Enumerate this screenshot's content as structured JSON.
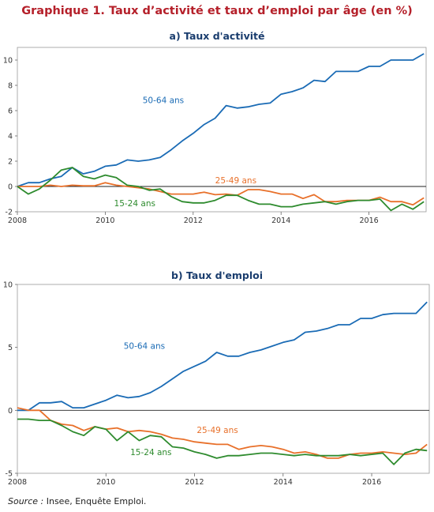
{
  "title": "Graphique 1. Taux d’activité et taux d’emploi par âge (en %)",
  "source": {
    "label": "Source :",
    "text": "Insee, Enquête Emploi."
  },
  "colors": {
    "c5064": "#1a6bb5",
    "c2549": "#e8702a",
    "c1524": "#2e8b2e",
    "title": "#b5202a",
    "panel_title": "#1a3d6e"
  },
  "chart_data": [
    {
      "type": "line",
      "title": "a) Taux d'activité",
      "xlim": [
        2008,
        2017.3
      ],
      "ylim": [
        -2,
        11
      ],
      "xticks": [
        2008,
        2010,
        2012,
        2014,
        2016
      ],
      "yticks": [
        -2,
        0,
        2,
        4,
        6,
        8,
        10
      ],
      "x": [
        2008.0,
        2008.25,
        2008.5,
        2008.75,
        2009.0,
        2009.25,
        2009.5,
        2009.75,
        2010.0,
        2010.25,
        2010.5,
        2010.75,
        2011.0,
        2011.25,
        2011.5,
        2011.75,
        2012.0,
        2012.25,
        2012.5,
        2012.75,
        2013.0,
        2013.25,
        2013.5,
        2013.75,
        2014.0,
        2014.25,
        2014.5,
        2014.75,
        2015.0,
        2015.25,
        2015.5,
        2015.75,
        2016.0,
        2016.25,
        2016.5,
        2016.75,
        2017.0,
        2017.25
      ],
      "series": [
        {
          "name": "50-64 ans",
          "color": "#1a6bb5",
          "values": [
            0.0,
            0.3,
            0.3,
            0.6,
            0.8,
            1.5,
            1.0,
            1.2,
            1.6,
            1.7,
            2.1,
            2.0,
            2.1,
            2.3,
            2.9,
            3.6,
            4.2,
            4.9,
            5.4,
            6.4,
            6.2,
            6.3,
            6.5,
            6.6,
            7.3,
            7.5,
            7.8,
            8.4,
            8.3,
            9.1,
            9.1,
            9.1,
            9.5,
            9.5,
            10.0,
            10.0,
            10.0,
            10.5
          ]
        },
        {
          "name": "25-49 ans",
          "color": "#e8702a",
          "values": [
            0.0,
            0.0,
            0.0,
            0.1,
            0.0,
            0.1,
            0.05,
            0.05,
            0.3,
            0.1,
            0.0,
            -0.1,
            -0.2,
            -0.4,
            -0.6,
            -0.6,
            -0.6,
            -0.45,
            -0.65,
            -0.6,
            -0.7,
            -0.25,
            -0.25,
            -0.4,
            -0.6,
            -0.6,
            -0.95,
            -0.65,
            -1.2,
            -1.2,
            -1.1,
            -1.1,
            -1.1,
            -0.85,
            -1.2,
            -1.2,
            -1.45,
            -0.9
          ]
        },
        {
          "name": "15-24 ans",
          "color": "#2e8b2e",
          "values": [
            0.0,
            -0.6,
            -0.2,
            0.5,
            1.3,
            1.5,
            0.8,
            0.6,
            0.9,
            0.7,
            0.1,
            0.0,
            -0.3,
            -0.2,
            -0.8,
            -1.2,
            -1.3,
            -1.3,
            -1.1,
            -0.7,
            -0.7,
            -1.1,
            -1.4,
            -1.4,
            -1.6,
            -1.6,
            -1.4,
            -1.3,
            -1.2,
            -1.4,
            -1.2,
            -1.1,
            -1.1,
            -1.0,
            -1.9,
            -1.4,
            -1.8,
            -1.2
          ]
        }
      ],
      "annotations": [
        {
          "text": "50-64 ans",
          "color": "#1a6bb5",
          "x": 2010.85,
          "y": 6.6
        },
        {
          "text": "25-49 ans",
          "color": "#e8702a",
          "x": 2012.5,
          "y": 0.25
        },
        {
          "text": "15-24 ans",
          "color": "#2e8b2e",
          "x": 2010.2,
          "y": -1.55
        }
      ]
    },
    {
      "type": "line",
      "title": "b) Taux d'emploi",
      "xlim": [
        2008,
        2017.3
      ],
      "ylim": [
        -5,
        10
      ],
      "xticks": [
        2008,
        2010,
        2012,
        2014,
        2016
      ],
      "yticks": [
        -5,
        0,
        5,
        10
      ],
      "x": [
        2008.0,
        2008.25,
        2008.5,
        2008.75,
        2009.0,
        2009.25,
        2009.5,
        2009.75,
        2010.0,
        2010.25,
        2010.5,
        2010.75,
        2011.0,
        2011.25,
        2011.5,
        2011.75,
        2012.0,
        2012.25,
        2012.5,
        2012.75,
        2013.0,
        2013.25,
        2013.5,
        2013.75,
        2014.0,
        2014.25,
        2014.5,
        2014.75,
        2015.0,
        2015.25,
        2015.5,
        2015.75,
        2016.0,
        2016.25,
        2016.5,
        2016.75,
        2017.0,
        2017.25
      ],
      "series": [
        {
          "name": "50-64 ans",
          "color": "#1a6bb5",
          "values": [
            0.0,
            0.0,
            0.6,
            0.6,
            0.7,
            0.2,
            0.2,
            0.5,
            0.8,
            1.2,
            1.0,
            1.1,
            1.4,
            1.9,
            2.5,
            3.1,
            3.5,
            3.9,
            4.6,
            4.3,
            4.3,
            4.6,
            4.8,
            5.1,
            5.4,
            5.6,
            6.2,
            6.3,
            6.5,
            6.8,
            6.8,
            7.3,
            7.3,
            7.6,
            7.7,
            7.7,
            7.7,
            8.6
          ]
        },
        {
          "name": "25-49 ans",
          "color": "#e8702a",
          "values": [
            0.2,
            0.0,
            0.0,
            -0.8,
            -1.1,
            -1.2,
            -1.6,
            -1.3,
            -1.5,
            -1.4,
            -1.7,
            -1.6,
            -1.7,
            -1.9,
            -2.2,
            -2.3,
            -2.5,
            -2.6,
            -2.7,
            -2.7,
            -3.1,
            -2.9,
            -2.8,
            -2.9,
            -3.1,
            -3.4,
            -3.3,
            -3.5,
            -3.8,
            -3.8,
            -3.5,
            -3.4,
            -3.4,
            -3.3,
            -3.4,
            -3.5,
            -3.4,
            -2.7
          ]
        },
        {
          "name": "15-24 ans",
          "color": "#2e8b2e",
          "values": [
            -0.7,
            -0.7,
            -0.8,
            -0.8,
            -1.2,
            -1.7,
            -2.0,
            -1.3,
            -1.5,
            -2.4,
            -1.7,
            -2.4,
            -2.0,
            -2.1,
            -2.9,
            -3.0,
            -3.3,
            -3.5,
            -3.8,
            -3.6,
            -3.6,
            -3.5,
            -3.4,
            -3.4,
            -3.5,
            -3.6,
            -3.5,
            -3.6,
            -3.6,
            -3.6,
            -3.5,
            -3.6,
            -3.5,
            -3.4,
            -4.3,
            -3.4,
            -3.1,
            -3.2
          ]
        }
      ],
      "annotations": [
        {
          "text": "50-64 ans",
          "color": "#1a6bb5",
          "x": 2010.4,
          "y": 4.9
        },
        {
          "text": "25-49 ans",
          "color": "#e8702a",
          "x": 2012.05,
          "y": -1.8
        },
        {
          "text": "15-24 ans",
          "color": "#2e8b2e",
          "x": 2010.55,
          "y": -3.55
        }
      ]
    }
  ]
}
